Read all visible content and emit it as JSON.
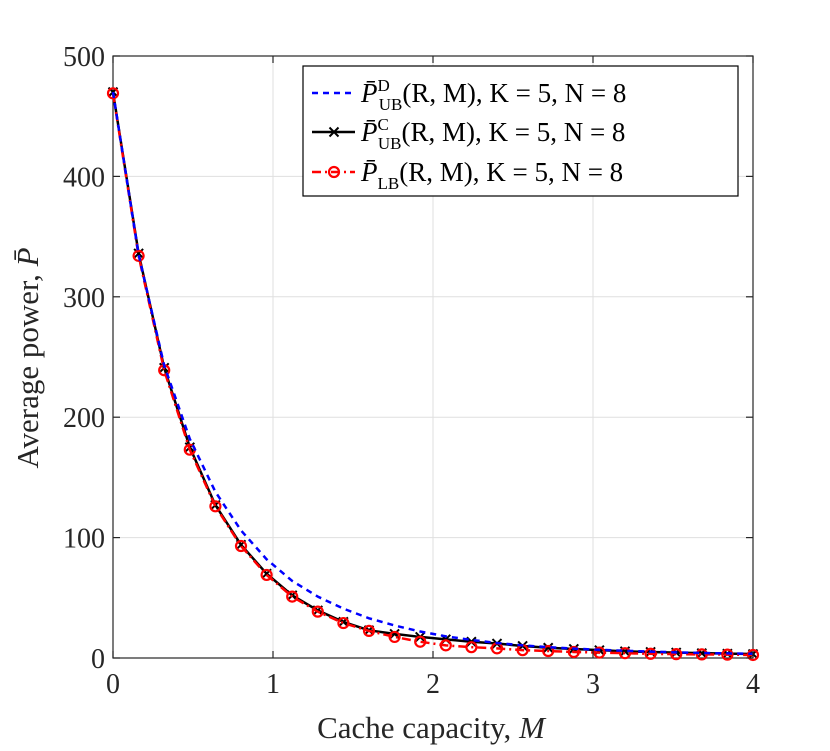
{
  "chart_data": {
    "type": "line",
    "title": "",
    "xlabel": "Cache capacity,",
    "xlabel_var": "M",
    "ylabel": "Average power,",
    "ylabel_var": "P̄",
    "xlim": [
      0,
      4
    ],
    "ylim": [
      0,
      500
    ],
    "xticks": [
      0,
      1,
      2,
      3,
      4
    ],
    "xtick_labels": [
      "0",
      "1",
      "2",
      "3",
      "4"
    ],
    "yticks": [
      0,
      100,
      200,
      300,
      400,
      500
    ],
    "ytick_labels": [
      "0",
      "100",
      "200",
      "300",
      "400",
      "500"
    ],
    "grid": true,
    "legend_position": "top-right",
    "x": [
      0,
      0.16,
      0.32,
      0.48,
      0.64,
      0.8,
      0.96,
      1.12,
      1.28,
      1.44,
      1.6,
      1.76,
      1.92,
      2.08,
      2.24,
      2.4,
      2.56,
      2.72,
      2.88,
      3.04,
      3.2,
      3.36,
      3.52,
      3.68,
      3.84,
      4.0
    ],
    "series": [
      {
        "name": "P̄_UB^D(R, M), K = 5, N = 8",
        "color": "#0000ff",
        "style": "dashed",
        "marker": "none",
        "values": [
          470,
          335,
          243,
          182,
          138,
          106,
          82,
          64,
          51,
          41,
          33,
          27,
          22,
          18,
          15,
          12.5,
          10.5,
          9,
          7.8,
          6.8,
          6,
          5.3,
          4.7,
          4.2,
          3.8,
          3.5
        ]
      },
      {
        "name": "P̄_UB^C(R, M), K = 5, N = 8",
        "color": "#000000",
        "style": "solid",
        "marker": "x",
        "values": [
          470,
          336,
          241,
          175,
          127,
          94,
          70,
          52,
          39.5,
          30,
          23,
          20,
          17.5,
          15.5,
          13.5,
          12,
          10,
          8.5,
          7.5,
          6.5,
          5.5,
          5,
          4.5,
          4,
          3.6,
          3.3
        ]
      },
      {
        "name": "P̄_LB(R, M), K = 5, N = 8",
        "color": "#ff0000",
        "style": "dashdot",
        "marker": "o",
        "values": [
          469,
          334,
          239,
          173,
          126,
          93,
          69,
          51,
          38.5,
          29,
          22.5,
          17.5,
          13.5,
          10.5,
          9,
          8,
          6.5,
          5.8,
          5,
          4.5,
          4,
          3.5,
          3.2,
          3,
          2.8,
          2.5
        ]
      }
    ],
    "legend": [
      {
        "base": "P̄",
        "sup": "D",
        "sub": "UB",
        "args": "(R, M)",
        "params": ", K = 5, N = 8"
      },
      {
        "base": "P̄",
        "sup": "C",
        "sub": "UB",
        "args": "(R, M)",
        "params": ", K = 5, N = 8"
      },
      {
        "base": "P̄",
        "sup": "",
        "sub": "LB",
        "args": "(R, M)",
        "params": ", K = 5, N = 8"
      }
    ]
  }
}
